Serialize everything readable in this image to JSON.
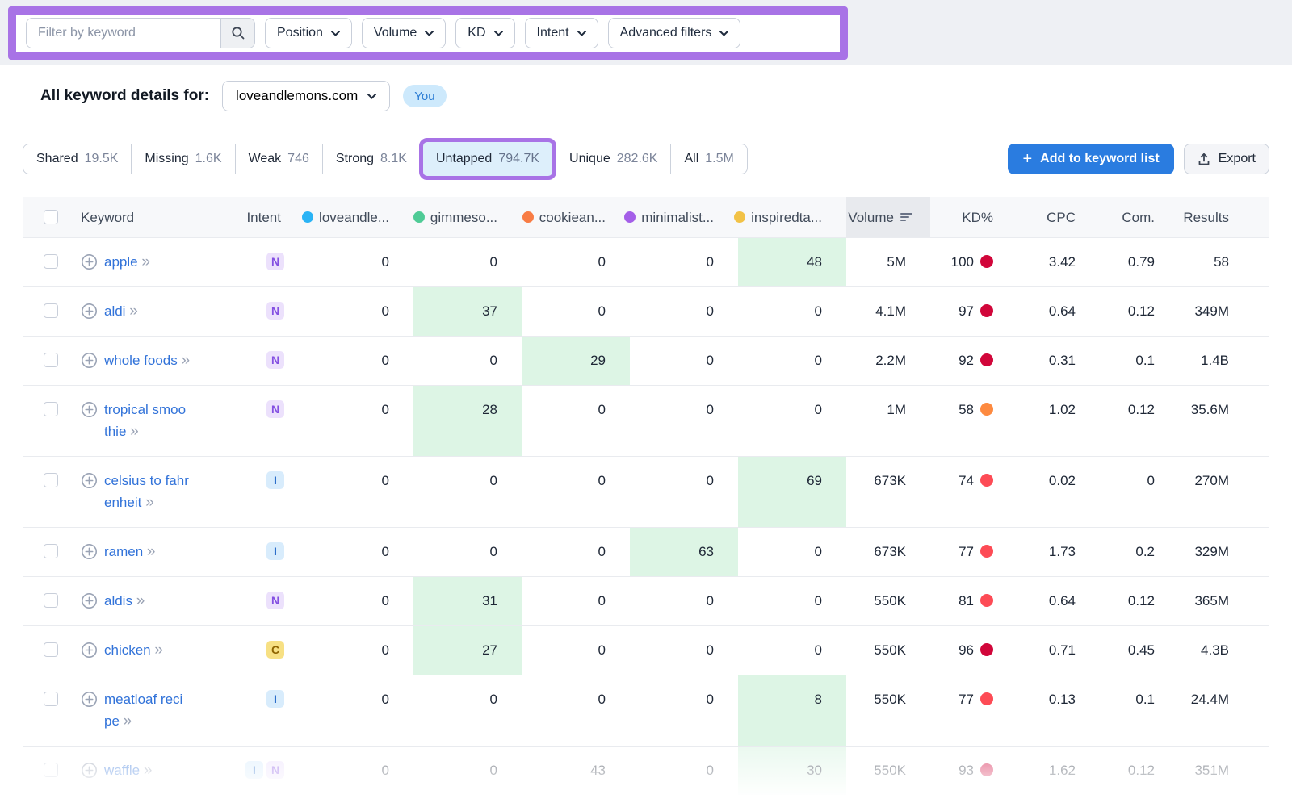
{
  "colors": {
    "annotation_purple": "#a873e6",
    "active_tab_bg": "#ddeffb",
    "green_cell": "#ddf5e5",
    "link_blue": "#3273d9",
    "primary_button_blue": "#2a7ce0"
  },
  "filter_bar": {
    "keyword_input_placeholder": "Filter by keyword",
    "dropdowns": [
      "Position",
      "Volume",
      "KD",
      "Intent",
      "Advanced filters"
    ]
  },
  "toolbar": {
    "title": "All keyword details for:",
    "domain_selector": "loveandlemons.com",
    "you_badge": "You",
    "add_button": "Add to keyword list",
    "export_button": "Export"
  },
  "tabs": [
    {
      "label": "Shared",
      "count": "19.5K",
      "active": false
    },
    {
      "label": "Missing",
      "count": "1.6K",
      "active": false
    },
    {
      "label": "Weak",
      "count": "746",
      "active": false
    },
    {
      "label": "Strong",
      "count": "8.1K",
      "active": false
    },
    {
      "label": "Untapped",
      "count": "794.7K",
      "active": true
    },
    {
      "label": "Unique",
      "count": "282.6K",
      "active": false
    },
    {
      "label": "All",
      "count": "1.5M",
      "active": false
    }
  ],
  "table": {
    "headers": {
      "keyword": "Keyword",
      "intent": "Intent",
      "volume": "Volume",
      "kd": "KD%",
      "cpc": "CPC",
      "com": "Com.",
      "results": "Results"
    },
    "competitors": [
      {
        "label": "loveandle...",
        "color": "#2ab3f5"
      },
      {
        "label": "gimmeso...",
        "color": "#4fcb96"
      },
      {
        "label": "cookiean...",
        "color": "#f87c44"
      },
      {
        "label": "minimalist...",
        "color": "#a45fe8"
      },
      {
        "label": "inspiredta...",
        "color": "#f2c246"
      }
    ],
    "intent_styles": {
      "N": {
        "bg": "#ece1fc",
        "fg": "#8450e2"
      },
      "I": {
        "bg": "#d8ecfc",
        "fg": "#2468c8"
      },
      "C": {
        "bg": "#f7e083",
        "fg": "#8f6400"
      }
    },
    "kd_colors": {
      "very_hard": "#d1063a",
      "hard": "#fd4b55",
      "possible": "#fd8a40"
    },
    "rows": [
      {
        "keyword": "apple",
        "display": "apple",
        "intents": [
          "N"
        ],
        "positions": [
          "0",
          "0",
          "0",
          "0",
          "48"
        ],
        "highlight": [
          4
        ],
        "volume": "5M",
        "kd": "100",
        "kd_level": "very_hard",
        "cpc": "3.42",
        "com": "0.79",
        "results": "58",
        "faded": false
      },
      {
        "keyword": "aldi",
        "display": "aldi",
        "intents": [
          "N"
        ],
        "positions": [
          "0",
          "37",
          "0",
          "0",
          "0"
        ],
        "highlight": [
          1
        ],
        "volume": "4.1M",
        "kd": "97",
        "kd_level": "very_hard",
        "cpc": "0.64",
        "com": "0.12",
        "results": "349M",
        "faded": false
      },
      {
        "keyword": "whole foods",
        "display": "whole foods",
        "intents": [
          "N"
        ],
        "positions": [
          "0",
          "0",
          "29",
          "0",
          "0"
        ],
        "highlight": [
          2
        ],
        "volume": "2.2M",
        "kd": "92",
        "kd_level": "very_hard",
        "cpc": "0.31",
        "com": "0.1",
        "results": "1.4B",
        "faded": false
      },
      {
        "keyword": "tropical smoothie",
        "display": "tropical smoo\nthie",
        "intents": [
          "N"
        ],
        "positions": [
          "0",
          "28",
          "0",
          "0",
          "0"
        ],
        "highlight": [
          1
        ],
        "volume": "1M",
        "kd": "58",
        "kd_level": "possible",
        "cpc": "1.02",
        "com": "0.12",
        "results": "35.6M",
        "faded": false
      },
      {
        "keyword": "celsius to fahrenheit",
        "display": "celsius to fahr\nenheit",
        "intents": [
          "I"
        ],
        "positions": [
          "0",
          "0",
          "0",
          "0",
          "69"
        ],
        "highlight": [
          4
        ],
        "volume": "673K",
        "kd": "74",
        "kd_level": "hard",
        "cpc": "0.02",
        "com": "0",
        "results": "270M",
        "faded": false
      },
      {
        "keyword": "ramen",
        "display": "ramen",
        "intents": [
          "I"
        ],
        "positions": [
          "0",
          "0",
          "0",
          "63",
          "0"
        ],
        "highlight": [
          3
        ],
        "volume": "673K",
        "kd": "77",
        "kd_level": "hard",
        "cpc": "1.73",
        "com": "0.2",
        "results": "329M",
        "faded": false
      },
      {
        "keyword": "aldis",
        "display": "aldis",
        "intents": [
          "N"
        ],
        "positions": [
          "0",
          "31",
          "0",
          "0",
          "0"
        ],
        "highlight": [
          1
        ],
        "volume": "550K",
        "kd": "81",
        "kd_level": "hard",
        "cpc": "0.64",
        "com": "0.12",
        "results": "365M",
        "faded": false
      },
      {
        "keyword": "chicken",
        "display": "chicken",
        "intents": [
          "C"
        ],
        "positions": [
          "0",
          "27",
          "0",
          "0",
          "0"
        ],
        "highlight": [
          1
        ],
        "volume": "550K",
        "kd": "96",
        "kd_level": "very_hard",
        "cpc": "0.71",
        "com": "0.45",
        "results": "4.3B",
        "faded": false
      },
      {
        "keyword": "meatloaf recipe",
        "display": "meatloaf reci\npe",
        "intents": [
          "I"
        ],
        "positions": [
          "0",
          "0",
          "0",
          "0",
          "8"
        ],
        "highlight": [
          4
        ],
        "volume": "550K",
        "kd": "77",
        "kd_level": "hard",
        "cpc": "0.13",
        "com": "0.1",
        "results": "24.4M",
        "faded": false
      },
      {
        "keyword": "waffle",
        "display": "waffle",
        "intents": [
          "I",
          "N"
        ],
        "positions": [
          "0",
          "0",
          "43",
          "0",
          "30"
        ],
        "highlight": [
          4
        ],
        "volume": "550K",
        "kd": "93",
        "kd_level": "very_hard",
        "cpc": "1.62",
        "com": "0.12",
        "results": "351M",
        "faded": true
      }
    ]
  }
}
